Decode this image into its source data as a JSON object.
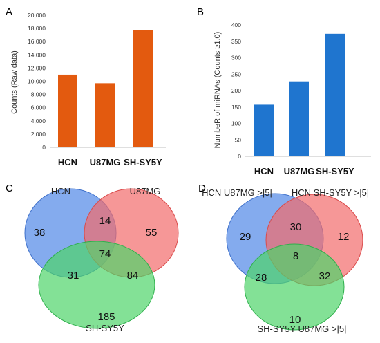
{
  "panels": {
    "a": {
      "label": "A"
    },
    "b": {
      "label": "B"
    },
    "c": {
      "label": "C"
    },
    "d": {
      "label": "D"
    }
  },
  "chart_data": [
    {
      "type": "bar",
      "panel": "A",
      "categories": [
        "HCN",
        "U87MG",
        "SH-SY5Y"
      ],
      "values": [
        11000,
        9700,
        17700
      ],
      "ylabel": "Counts (Raw data)",
      "ylim": [
        0,
        20000
      ],
      "yticks": [
        "0",
        "2,000",
        "4,000",
        "6,000",
        "8,000",
        "10,000",
        "12,000",
        "14,000",
        "16,000",
        "18,000",
        "20,000"
      ],
      "ytick_values": [
        0,
        2000,
        4000,
        6000,
        8000,
        10000,
        12000,
        14000,
        16000,
        18000,
        20000
      ],
      "color": "#E35A0F",
      "grid": false
    },
    {
      "type": "bar",
      "panel": "B",
      "categories": [
        "HCN",
        "U87MG",
        "SH-SY5Y"
      ],
      "values": [
        157,
        228,
        373
      ],
      "ylabel": "NumbeR of miRNAs (Counts ≥1.0)",
      "ylim": [
        0,
        400
      ],
      "yticks": [
        "0",
        "50",
        "100",
        "150",
        "200",
        "250",
        "300",
        "350",
        "400"
      ],
      "ytick_values": [
        0,
        50,
        100,
        150,
        200,
        250,
        300,
        350,
        400
      ],
      "color": "#1F75CF",
      "grid": false
    }
  ],
  "venn_c": {
    "set_labels": [
      "HCN",
      "U87MG",
      "SH-SY5Y"
    ],
    "regions": {
      "a_only": "38",
      "b_only": "55",
      "c_only": "185",
      "ab": "14",
      "ac": "31",
      "bc": "84",
      "abc": "74"
    },
    "colors": [
      "#5B8FE8",
      "#F26B6B",
      "#4ED46A"
    ]
  },
  "venn_d": {
    "set_labels": [
      "HCN U87MG >|5|",
      "HCN SH-SY5Y >|5|",
      "SH-SY5Y U87MG >|5|"
    ],
    "regions": {
      "a_only": "29",
      "b_only": "12",
      "c_only": "10",
      "ab": "30",
      "ac": "28",
      "bc": "32",
      "abc": "8"
    },
    "colors": [
      "#5B8FE8",
      "#F26B6B",
      "#4ED46A"
    ]
  }
}
